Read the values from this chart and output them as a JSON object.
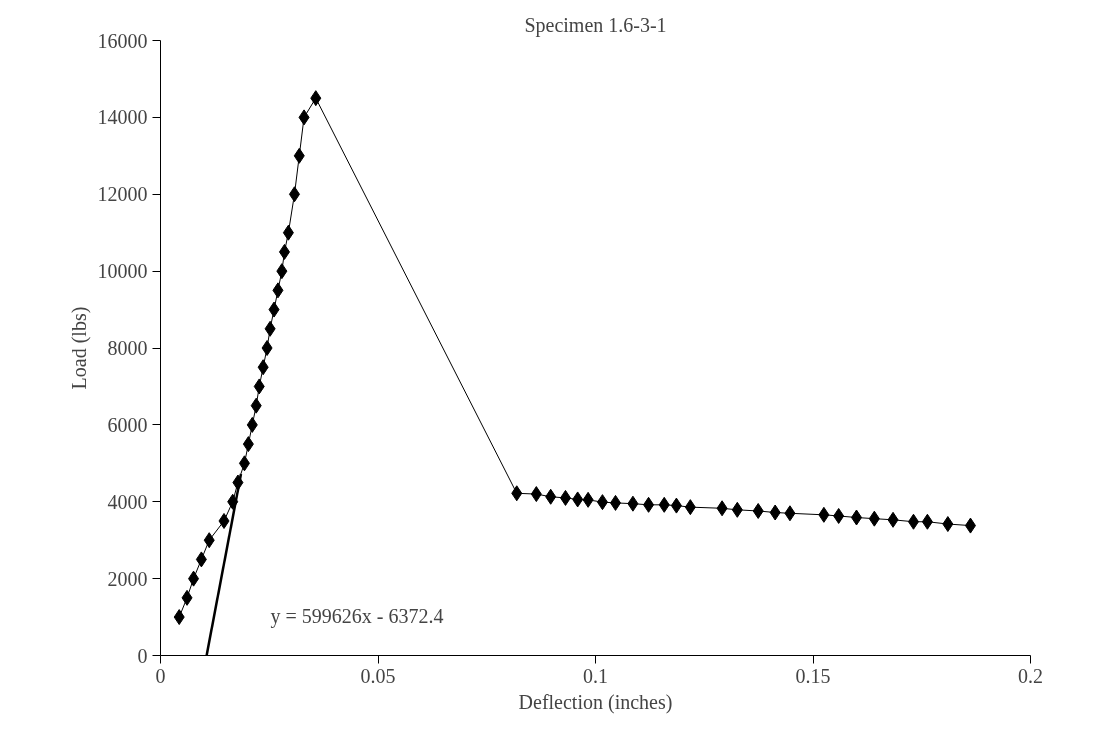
{
  "chart_data": {
    "type": "line",
    "title": "Specimen 1.6-3-1",
    "xlabel": "Deflection (inches)",
    "ylabel": "Load (lbs)",
    "xlim": [
      0,
      0.2
    ],
    "xticks": [
      0,
      0.05,
      0.1,
      0.15,
      0.2
    ],
    "ylim": [
      0,
      16000
    ],
    "yticks": [
      0,
      2000,
      4000,
      6000,
      8000,
      10000,
      12000,
      14000,
      16000
    ],
    "grid": false,
    "marker": "diamond",
    "line_style": "solid",
    "series": [
      {
        "color": "#000000",
        "x": [
          0.0043,
          0.0061,
          0.0076,
          0.0094,
          0.0112,
          0.0146,
          0.0166,
          0.0178,
          0.0193,
          0.0202,
          0.0211,
          0.022,
          0.0227,
          0.0236,
          0.0245,
          0.0252,
          0.0261,
          0.027,
          0.0279,
          0.0285,
          0.0294,
          0.0308,
          0.0319,
          0.033,
          0.0357,
          0.0819,
          0.0864,
          0.0897,
          0.0931,
          0.0959,
          0.0983,
          0.1016,
          0.1046,
          0.1086,
          0.1122,
          0.1158,
          0.1186,
          0.1218,
          0.1291,
          0.1326,
          0.1374,
          0.1413,
          0.1447,
          0.1525,
          0.1559,
          0.16,
          0.1641,
          0.1684,
          0.1731,
          0.1763,
          0.181,
          0.1862
        ],
        "values": [
          1000,
          1500,
          2000,
          2500,
          3000,
          3500,
          4000,
          4500,
          5000,
          5500,
          6000,
          6500,
          7000,
          7500,
          8000,
          8500,
          9000,
          9500,
          10000,
          10500,
          11000,
          12000,
          13000,
          14000,
          14500,
          4220,
          4200,
          4130,
          4100,
          4060,
          4050,
          3990,
          3970,
          3950,
          3920,
          3920,
          3900,
          3860,
          3830,
          3790,
          3760,
          3720,
          3700,
          3660,
          3630,
          3590,
          3560,
          3530,
          3480,
          3480,
          3420,
          3380
        ]
      },
      {
        "type": "line",
        "color": "#000000",
        "marker": "none",
        "x": [
          0.0106,
          0.0185
        ],
        "values": [
          0,
          4720
        ]
      }
    ],
    "annotations": [
      "y = 599626x - 6372.4"
    ]
  }
}
